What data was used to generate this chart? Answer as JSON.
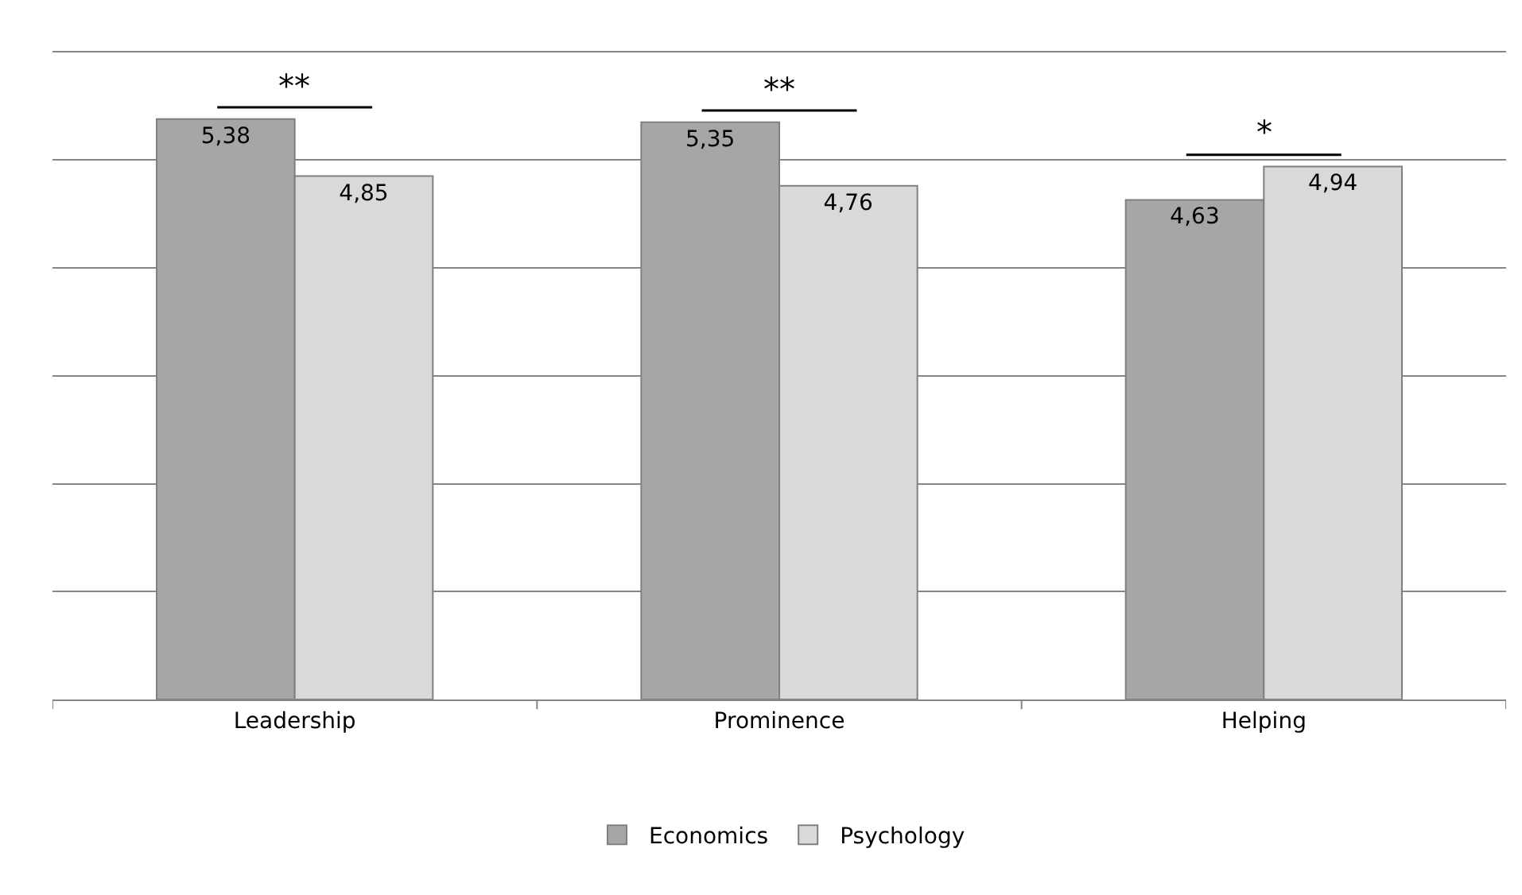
{
  "chart_data": {
    "type": "bar",
    "categories": [
      "Leadership",
      "Prominence",
      "Helping"
    ],
    "series": [
      {
        "name": "Economics",
        "color": "#a6a6a6",
        "values": [
          5.38,
          5.35,
          4.63
        ],
        "value_labels": [
          "5,38",
          "5,35",
          "4,63"
        ]
      },
      {
        "name": "Psychology",
        "color": "#d9d9d9",
        "values": [
          4.85,
          4.76,
          4.94
        ],
        "value_labels": [
          "4,85",
          "4,76",
          "4,94"
        ]
      }
    ],
    "tick_labels": "x",
    "grid": "y",
    "legend": "bottom",
    "annotations": [
      "**",
      "**",
      "*"
    ]
  }
}
